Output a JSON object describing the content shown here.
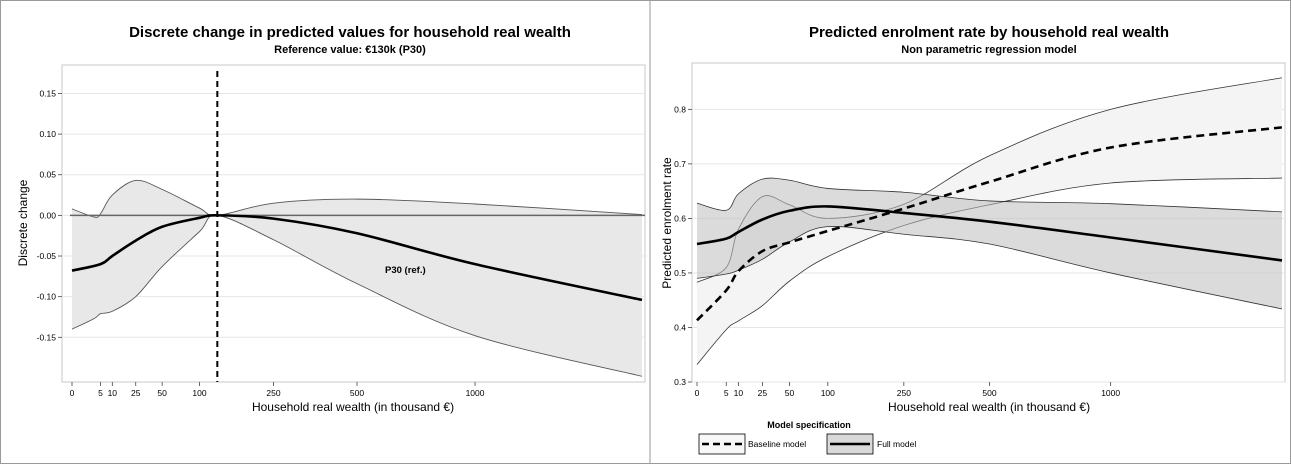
{
  "chart_data": [
    {
      "type": "line",
      "title": "Discrete change in predicted values for household real wealth",
      "subtitle": "Reference value: €130k (P30)",
      "xlabel": "Household real wealth (in thousand €)",
      "ylabel": "Discrete change",
      "x_ticks": [
        "0",
        "5",
        "10",
        "25",
        "50",
        "100",
        "250",
        "500",
        "1000"
      ],
      "y_ticks": [
        "0.15",
        "0.10",
        "0.05",
        "0.00",
        "-0.05",
        "-0.10",
        "-0.15"
      ],
      "ylim": [
        -0.205,
        0.185
      ],
      "grid": "horizontal",
      "reference_line": {
        "x_position": 130,
        "label": "P30 (ref.)"
      },
      "series": [
        {
          "role": "point-estimate",
          "x": [
            0,
            5,
            10,
            25,
            50,
            100,
            130,
            250,
            500,
            1000,
            2000
          ],
          "values": [
            -0.068,
            -0.06,
            -0.05,
            -0.031,
            -0.014,
            -0.003,
            0.0,
            -0.004,
            -0.022,
            -0.06,
            -0.104
          ]
        },
        {
          "role": "ci-upper",
          "x": [
            0,
            3,
            5,
            10,
            25,
            50,
            100,
            130,
            250,
            500,
            1000,
            2000
          ],
          "values": [
            0.008,
            -0.002,
            0.002,
            0.025,
            0.043,
            0.032,
            0.009,
            0.0,
            0.015,
            0.02,
            0.014,
            0.001
          ]
        },
        {
          "role": "ci-lower",
          "x": [
            0,
            3,
            5,
            10,
            25,
            50,
            100,
            130,
            250,
            500,
            1000,
            2000
          ],
          "values": [
            -0.14,
            -0.127,
            -0.121,
            -0.118,
            -0.1,
            -0.063,
            -0.02,
            0.0,
            -0.03,
            -0.084,
            -0.148,
            -0.198
          ]
        }
      ]
    },
    {
      "type": "line",
      "title": "Predicted enrolment rate by household real wealth",
      "subtitle": "Non parametric regression model",
      "xlabel": "Household real wealth (in thousand €)",
      "ylabel": "Predicted enrolment rate",
      "x_ticks": [
        "0",
        "5",
        "10",
        "25",
        "50",
        "100",
        "250",
        "500",
        "1000"
      ],
      "y_ticks": [
        "0.8",
        "0.7",
        "0.6",
        "0.5",
        "0.4",
        "0.3"
      ],
      "ylim": [
        0.3,
        0.885
      ],
      "grid": "horizontal",
      "legend": {
        "title": "Model specification",
        "position": "bottom",
        "items": [
          {
            "label": "Baseline model",
            "style": "dashed",
            "fill": "#f7f7f7"
          },
          {
            "label": "Full model",
            "style": "solid",
            "fill": "#d9d9d9"
          }
        ]
      },
      "series": [
        {
          "name": "Baseline model",
          "x": [
            0,
            5,
            10,
            25,
            50,
            100,
            250,
            500,
            1000,
            2000
          ],
          "values": [
            0.413,
            0.468,
            0.503,
            0.54,
            0.556,
            0.577,
            0.618,
            0.667,
            0.73,
            0.767
          ],
          "ci_upper": [
            0.483,
            0.51,
            0.58,
            0.64,
            0.625,
            0.6,
            0.626,
            0.715,
            0.8,
            0.858
          ],
          "ci_lower": [
            0.332,
            0.396,
            0.412,
            0.44,
            0.485,
            0.53,
            0.587,
            0.625,
            0.665,
            0.674
          ]
        },
        {
          "name": "Full model",
          "x": [
            0,
            5,
            10,
            25,
            50,
            100,
            250,
            500,
            1000,
            2000
          ],
          "values": [
            0.553,
            0.563,
            0.575,
            0.598,
            0.614,
            0.622,
            0.61,
            0.594,
            0.565,
            0.523
          ],
          "ci_upper": [
            0.628,
            0.615,
            0.645,
            0.672,
            0.67,
            0.655,
            0.648,
            0.632,
            0.627,
            0.612
          ],
          "ci_lower": [
            0.49,
            0.498,
            0.505,
            0.525,
            0.557,
            0.585,
            0.571,
            0.553,
            0.5,
            0.434
          ]
        }
      ]
    }
  ]
}
